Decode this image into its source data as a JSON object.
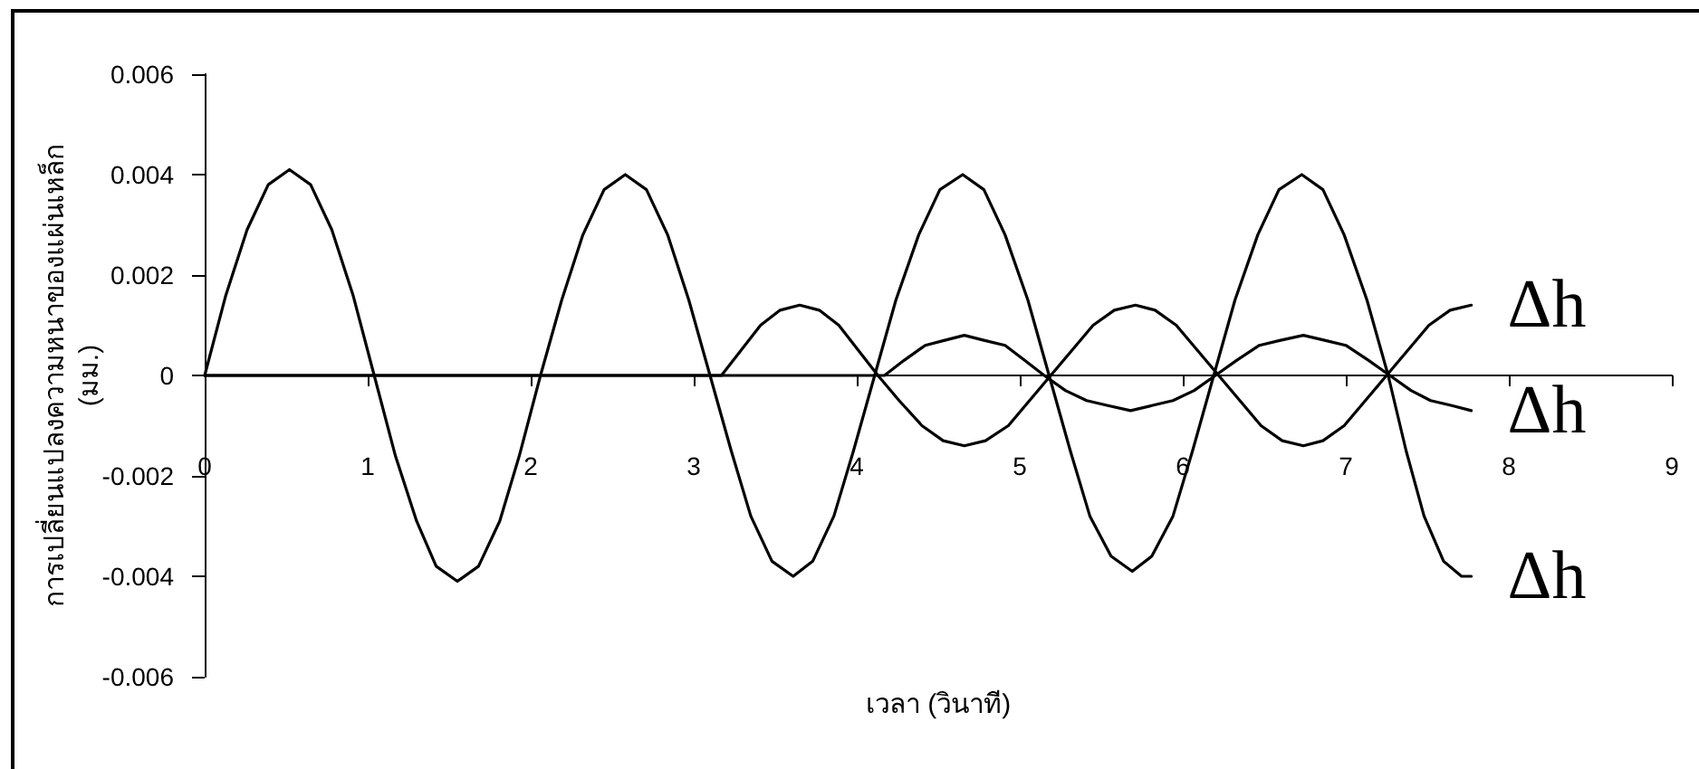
{
  "chart_data": {
    "type": "line",
    "xlabel": "เวลา (วินาที)",
    "ylabel": "การเปลี่ยนแปลงความหนาของแผ่นเหล็ก (มม.)",
    "xlim": [
      0,
      9
    ],
    "xticks": [
      0,
      1,
      2,
      3,
      4,
      5,
      6,
      7,
      8,
      9
    ],
    "ylim": [
      -0.006,
      0.006
    ],
    "yticks": [
      -0.006,
      -0.004,
      -0.002,
      0,
      0.002,
      0.004,
      0.006
    ],
    "marker": "none",
    "line_style": "solid",
    "series": [
      {
        "name": "Δh",
        "color": "#000000",
        "x": [
          0,
          0.13,
          0.26,
          0.39,
          0.52,
          0.65,
          0.78,
          0.91,
          1.04,
          1.17,
          1.3,
          1.42,
          1.55,
          1.68,
          1.81,
          1.93,
          2.06,
          2.19,
          2.32,
          2.45,
          2.58,
          2.71,
          2.84,
          2.97,
          3.1,
          3.23,
          3.35,
          3.48,
          3.61,
          3.73,
          3.86,
          3.98,
          4.11,
          4.24,
          4.38,
          4.51,
          4.65,
          4.78,
          4.91,
          5.05,
          5.18,
          5.31,
          5.43,
          5.56,
          5.69,
          5.81,
          5.94,
          6.06,
          6.19,
          6.32,
          6.46,
          6.59,
          6.73,
          6.86,
          6.99,
          7.13,
          7.26,
          7.37,
          7.48,
          7.6,
          7.71,
          7.77
        ],
        "values": [
          0,
          0.0016,
          0.0029,
          0.0038,
          0.0041,
          0.0038,
          0.0029,
          0.0016,
          0,
          -0.0016,
          -0.0029,
          -0.0038,
          -0.0041,
          -0.0038,
          -0.0029,
          -0.0016,
          0,
          0.0015,
          0.0028,
          0.0037,
          0.004,
          0.0037,
          0.0028,
          0.0015,
          0,
          -0.0015,
          -0.0028,
          -0.0037,
          -0.004,
          -0.0037,
          -0.0028,
          -0.0015,
          0,
          0.0015,
          0.0028,
          0.0037,
          0.004,
          0.0037,
          0.0028,
          0.0015,
          0,
          -0.0015,
          -0.0028,
          -0.0036,
          -0.0039,
          -0.0036,
          -0.0028,
          -0.0015,
          0,
          0.0015,
          0.0028,
          0.0037,
          0.004,
          0.0037,
          0.0028,
          0.0015,
          0,
          -0.0015,
          -0.0028,
          -0.0037,
          -0.004,
          -0.004
        ]
      },
      {
        "name": "Δh",
        "color": "#000000",
        "x": [
          0,
          1,
          2,
          3,
          3.17,
          3.29,
          3.41,
          3.53,
          3.65,
          3.77,
          3.89,
          4.01,
          4.13,
          4.26,
          4.4,
          4.53,
          4.66,
          4.79,
          4.93,
          5.06,
          5.19,
          5.32,
          5.45,
          5.58,
          5.71,
          5.83,
          5.96,
          6.09,
          6.22,
          6.35,
          6.48,
          6.61,
          6.74,
          6.86,
          6.99,
          7.12,
          7.25,
          7.38,
          7.51,
          7.64,
          7.77
        ],
        "values": [
          0,
          0,
          0,
          0,
          0,
          0.0005,
          0.001,
          0.0013,
          0.0014,
          0.0013,
          0.001,
          0.0005,
          0,
          -0.0005,
          -0.001,
          -0.0013,
          -0.0014,
          -0.0013,
          -0.001,
          -0.0005,
          0,
          0.0005,
          0.001,
          0.0013,
          0.0014,
          0.0013,
          0.001,
          0.0005,
          0,
          -0.0005,
          -0.001,
          -0.0013,
          -0.0014,
          -0.0013,
          -0.001,
          -0.0005,
          0,
          0.0005,
          0.001,
          0.0013,
          0.0014
        ]
      },
      {
        "name": "Δh",
        "color": "#000000",
        "x": [
          0,
          1,
          2,
          3,
          4,
          4.17,
          4.29,
          4.42,
          4.54,
          4.66,
          4.78,
          4.91,
          5.03,
          5.15,
          5.28,
          5.41,
          5.54,
          5.68,
          5.81,
          5.94,
          6.07,
          6.2,
          6.33,
          6.47,
          6.6,
          6.74,
          6.87,
          7.0,
          7.14,
          7.27,
          7.4,
          7.52,
          7.65,
          7.77
        ],
        "values": [
          0,
          0,
          0,
          0,
          0,
          0,
          0.0003,
          0.0006,
          0.0007,
          0.0008,
          0.0007,
          0.0006,
          0.0003,
          0,
          -0.0003,
          -0.0005,
          -0.0006,
          -0.0007,
          -0.0006,
          -0.0005,
          -0.0003,
          0,
          0.0003,
          0.0006,
          0.0007,
          0.0008,
          0.0007,
          0.0006,
          0.0003,
          0,
          -0.0003,
          -0.0005,
          -0.0006,
          -0.0007
        ]
      }
    ]
  }
}
